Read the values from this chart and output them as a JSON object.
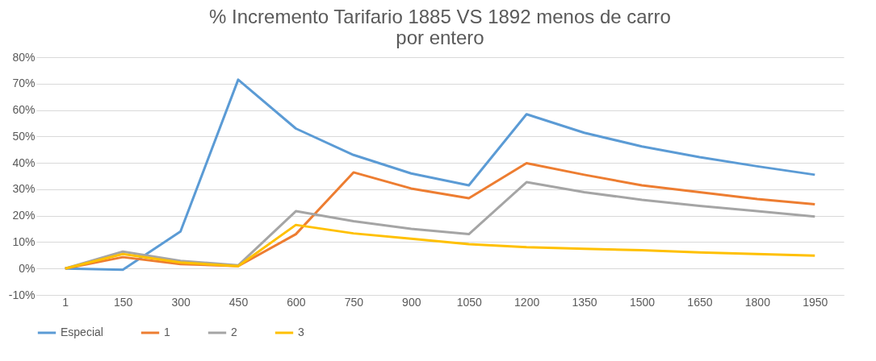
{
  "chart_data": {
    "type": "line",
    "title": "% Incremento Tarifario 1885 VS 1892 menos de carro\npor entero",
    "categories": [
      "1",
      "150",
      "300",
      "450",
      "600",
      "750",
      "900",
      "1050",
      "1200",
      "1350",
      "1500",
      "1650",
      "1800",
      "1950"
    ],
    "series": [
      {
        "name": "Especial",
        "color": "#5b9bd5",
        "values": [
          0,
          -0.5,
          14,
          71.5,
          53,
          43,
          36,
          31.5,
          58.4,
          51.4,
          46.2,
          42.2,
          38.7,
          35.5
        ]
      },
      {
        "name": "1",
        "color": "#ed7d31",
        "values": [
          0,
          4.3,
          1.7,
          0.9,
          13,
          36.4,
          30.3,
          26.6,
          39.9,
          35.5,
          31.5,
          28.9,
          26.3,
          24.3
        ]
      },
      {
        "name": "2",
        "color": "#a5a5a5",
        "values": [
          0,
          6.4,
          2.9,
          1.2,
          21.7,
          17.9,
          15,
          13,
          32.7,
          28.9,
          26,
          23.7,
          21.7,
          19.7
        ]
      },
      {
        "name": "3",
        "color": "#ffc000",
        "values": [
          0,
          5.5,
          2.3,
          0.9,
          16.5,
          13.3,
          11.3,
          9.2,
          8.1,
          7.5,
          6.9,
          6.1,
          5.5,
          4.9
        ]
      }
    ],
    "ylim": [
      -10,
      80
    ],
    "yticks": [
      {
        "value": -10,
        "label": "-10%"
      },
      {
        "value": 0,
        "label": "0%"
      },
      {
        "value": 10,
        "label": "10%"
      },
      {
        "value": 20,
        "label": "20%"
      },
      {
        "value": 30,
        "label": "30%"
      },
      {
        "value": 40,
        "label": "40%"
      },
      {
        "value": 50,
        "label": "50%"
      },
      {
        "value": 60,
        "label": "60%"
      },
      {
        "value": 70,
        "label": "70%"
      },
      {
        "value": 80,
        "label": "80%"
      }
    ],
    "grid": "y",
    "legend": "bottom",
    "marker": "none",
    "line_style": "solid"
  }
}
